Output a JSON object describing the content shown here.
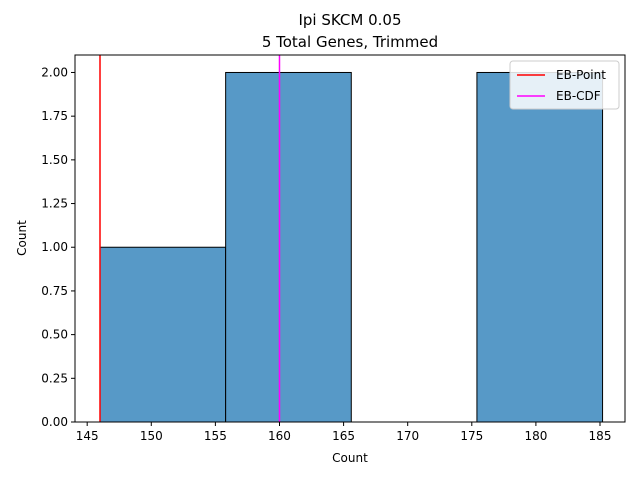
{
  "chart_data": {
    "type": "bar",
    "subtype": "histogram",
    "title_line1": "Ipi SKCM 0.05",
    "title_line2": "5 Total Genes, Trimmed",
    "xlabel": "Count",
    "ylabel": "Count",
    "xlim": [
      144.05,
      186.95
    ],
    "ylim": [
      0,
      2.1
    ],
    "x_ticks": [
      145,
      150,
      155,
      160,
      165,
      170,
      175,
      180,
      185
    ],
    "x_tick_labels": [
      "145",
      "150",
      "155",
      "160",
      "165",
      "170",
      "175",
      "180",
      "185"
    ],
    "y_ticks": [
      0,
      0.25,
      0.5,
      0.75,
      1.0,
      1.25,
      1.5,
      1.75,
      2.0
    ],
    "y_tick_labels": [
      "0.00",
      "0.25",
      "0.50",
      "0.75",
      "1.00",
      "1.25",
      "1.50",
      "1.75",
      "2.00"
    ],
    "bins": [
      {
        "start": 146.0,
        "end": 155.8,
        "count": 1
      },
      {
        "start": 155.8,
        "end": 165.6,
        "count": 2
      },
      {
        "start": 165.6,
        "end": 175.4,
        "count": 0
      },
      {
        "start": 175.4,
        "end": 185.2,
        "count": 2
      }
    ],
    "bar_color": "#5799c7",
    "vlines": [
      {
        "name": "EB-Point",
        "x": 146.0,
        "color": "#ff0000"
      },
      {
        "name": "EB-CDF",
        "x": 160.0,
        "color": "#ff00ff"
      }
    ],
    "legend": {
      "position": "top-right",
      "entries": [
        {
          "label": "EB-Point",
          "color": "#ff0000"
        },
        {
          "label": "EB-CDF",
          "color": "#ff00ff"
        }
      ]
    }
  }
}
